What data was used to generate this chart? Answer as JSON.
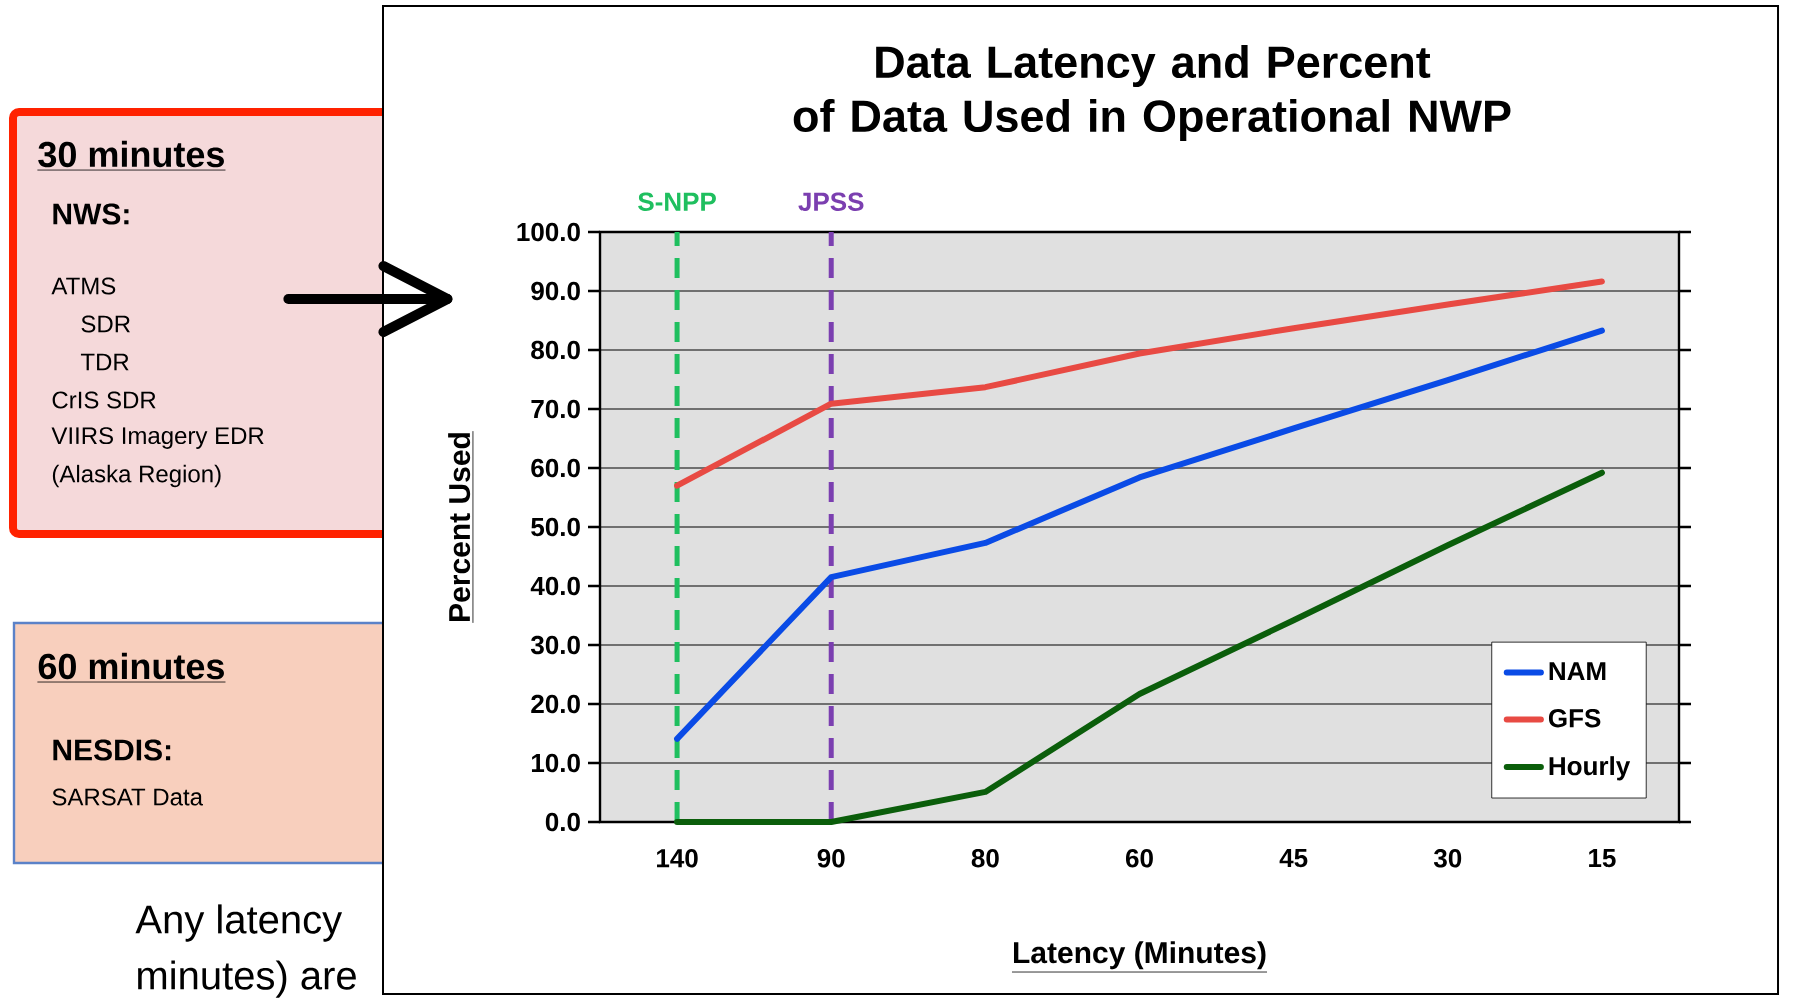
{
  "chart_data": [
    {
      "type": "other",
      "annotations": [
        "30 minutes",
        "NWS:",
        "ATMS",
        "SDR",
        "TDR",
        "CrIS SDR",
        "VIIRS Imagery EDR",
        "(Alaska Region)",
        "60 minutes",
        "NESDIS:",
        "SARSAT Data",
        "Any latency",
        "minutes) are"
      ]
    },
    {
      "type": "line",
      "title": "Data Latency and Percent\nof Data Used in Operational NWP",
      "xlabel": "Latency (Minutes)",
      "ylabel": "Percent Used",
      "categories": [
        "140",
        "90",
        "80",
        "60",
        "45",
        "30",
        "15"
      ],
      "series": [
        {
          "name": "NAM",
          "color": "#0a4be6",
          "values": [
            14.1,
            41.5,
            47.3,
            58.4,
            66.7,
            74.9,
            83.3
          ]
        },
        {
          "name": "GFS",
          "color": "#e84a43",
          "values": [
            57.0,
            70.9,
            73.7,
            79.4,
            83.7,
            87.7,
            91.6
          ]
        },
        {
          "name": "Hourly",
          "color": "#0b5e0b",
          "values": [
            0.0,
            0.0,
            5.1,
            21.7,
            34.2,
            46.9,
            59.2
          ]
        }
      ],
      "ylim": [
        0,
        100
      ],
      "yticks": [
        {
          "value": 0,
          "label": "0.0"
        },
        {
          "value": 10,
          "label": "10.0"
        },
        {
          "value": 20,
          "label": "20.0"
        },
        {
          "value": 30,
          "label": "30.0"
        },
        {
          "value": 40,
          "label": "40.0"
        },
        {
          "value": 50,
          "label": "50.0"
        },
        {
          "value": 60,
          "label": "60.0"
        },
        {
          "value": 70,
          "label": "70.0"
        },
        {
          "value": 80,
          "label": "80.0"
        },
        {
          "value": 90,
          "label": "90.0"
        },
        {
          "value": 100,
          "label": "100.0"
        }
      ],
      "grid": "y",
      "legend": "bottom right",
      "marker": "none",
      "line_style": "solid",
      "ref_lines": [
        {
          "axis": "x",
          "value": "140",
          "label": "S-NPP",
          "color": "#1fbf5f",
          "line_style": "dashed"
        },
        {
          "axis": "x",
          "value": "90",
          "label": "JPSS",
          "color": "#7b3fb0",
          "line_style": "dashed"
        }
      ]
    }
  ]
}
